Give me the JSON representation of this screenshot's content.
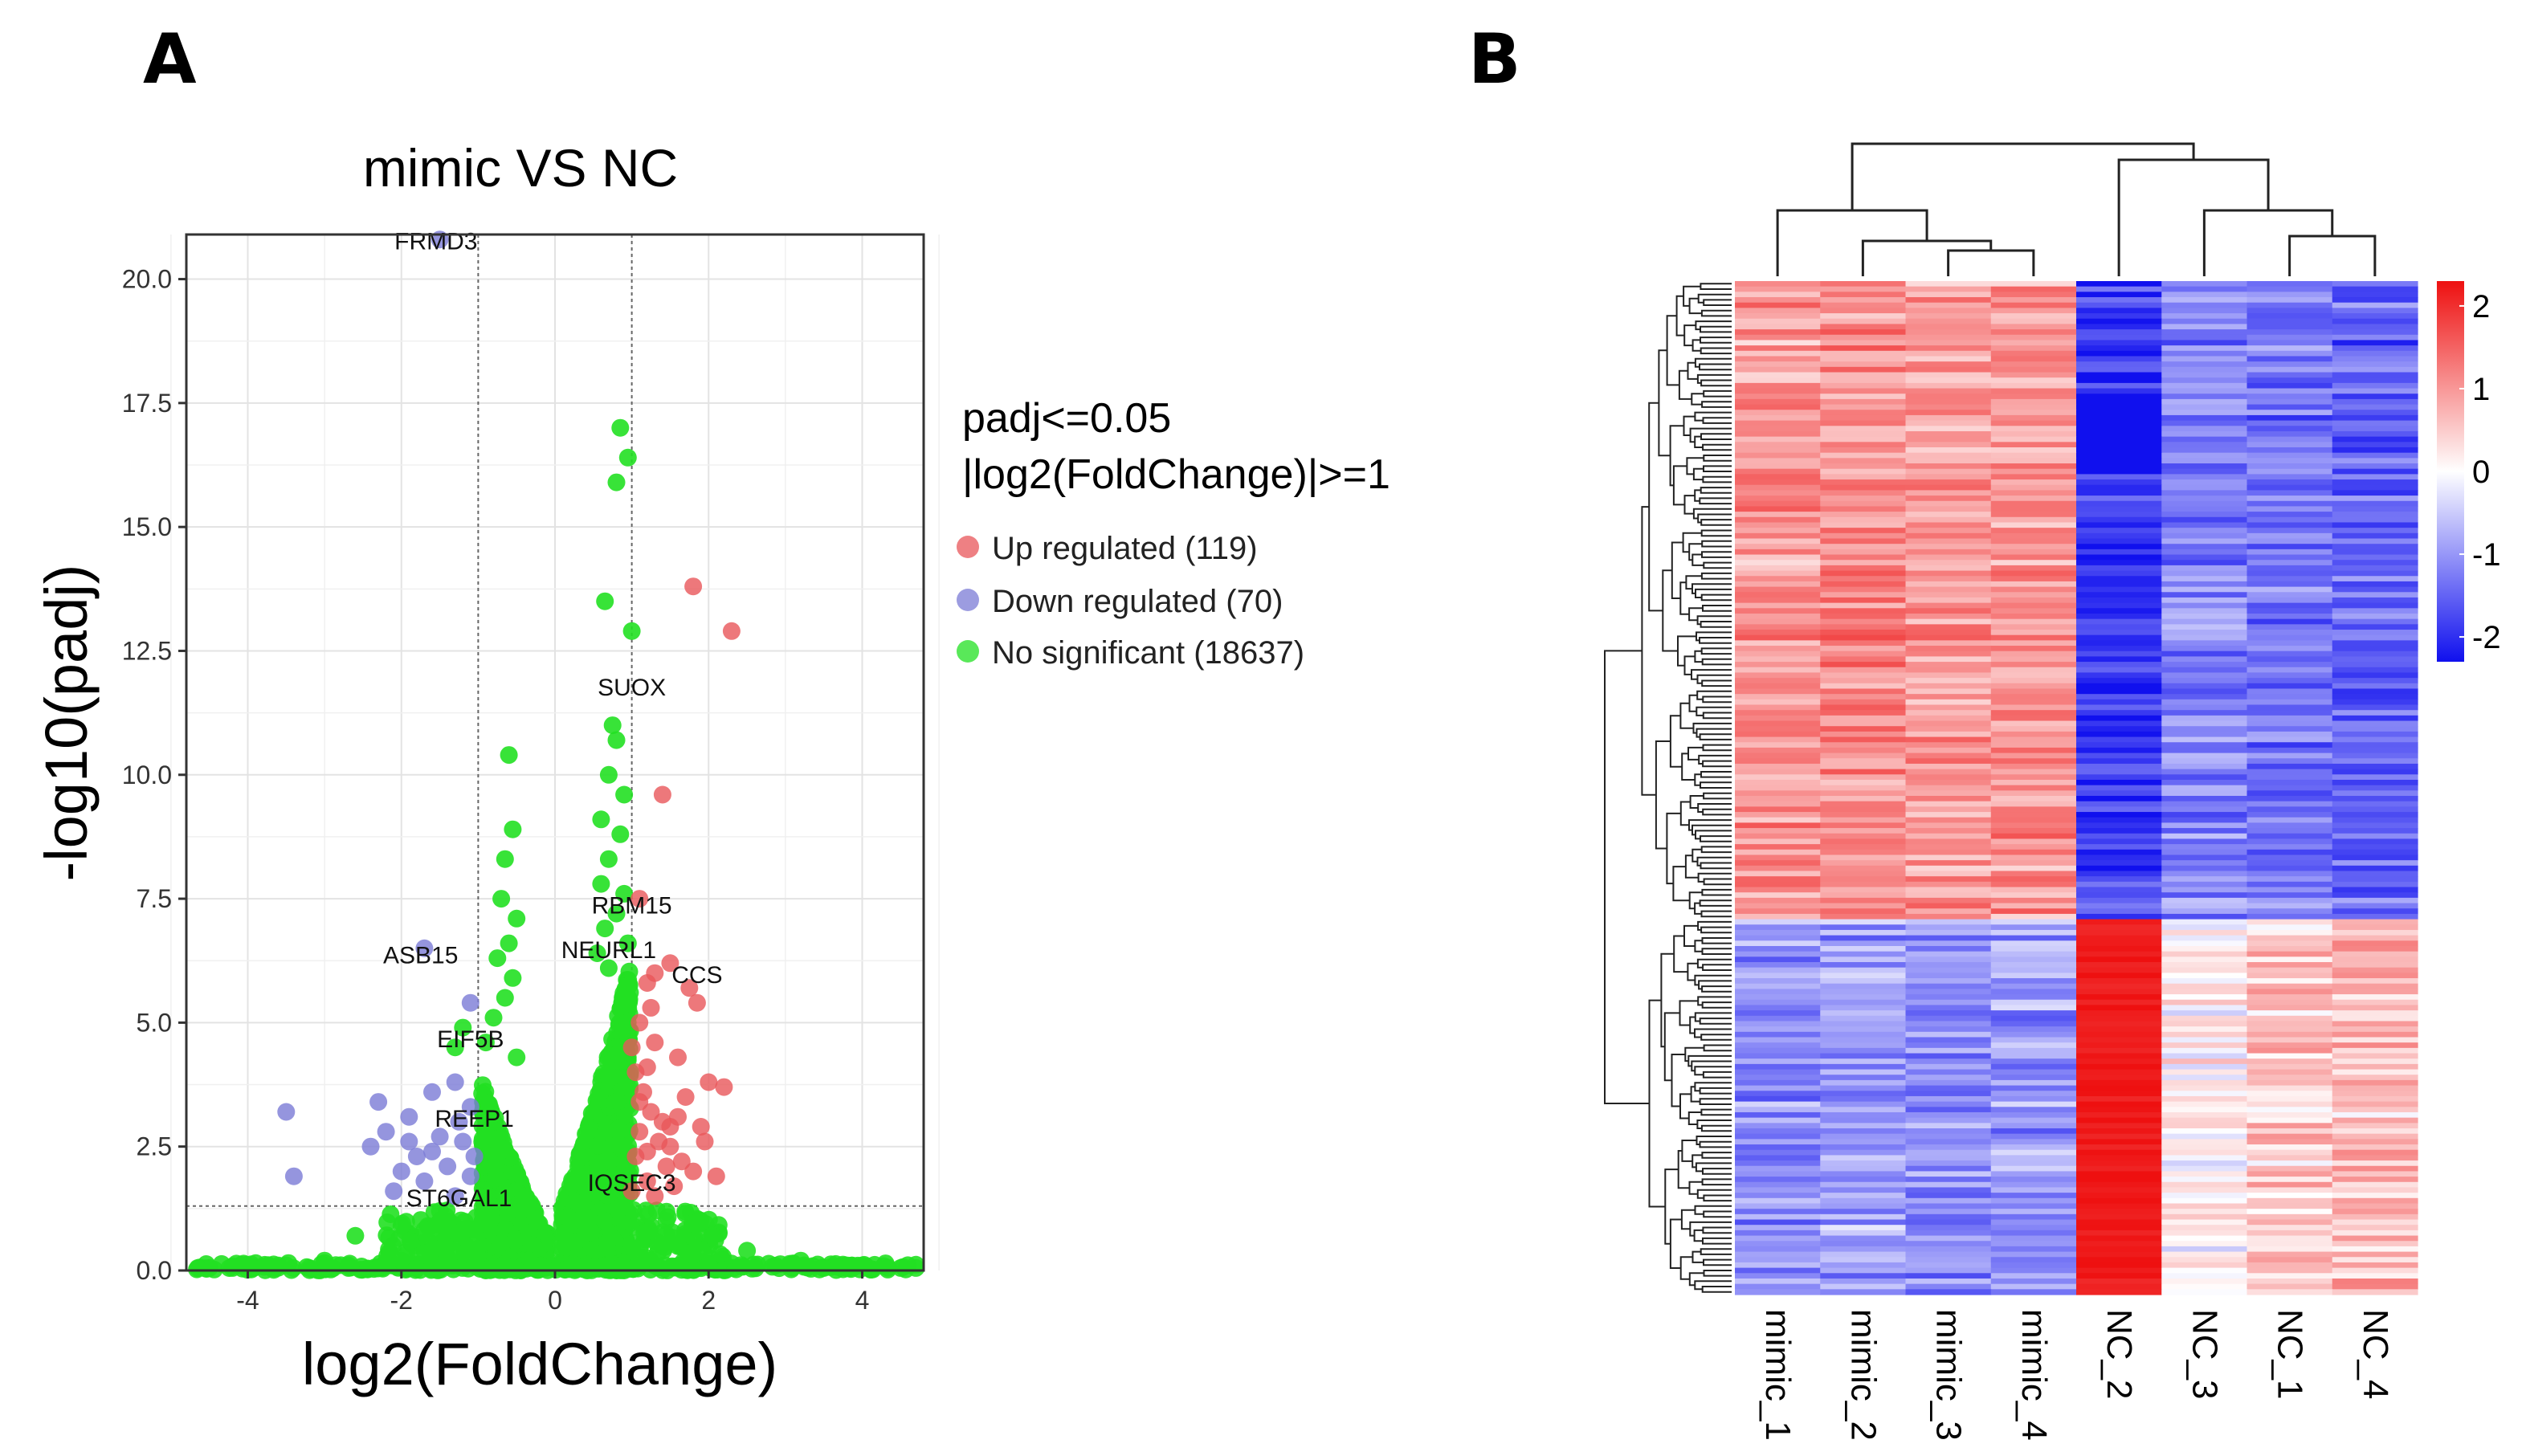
{
  "panel_labels": {
    "a": "A",
    "b": "B"
  },
  "chart_data": [
    {
      "type": "scatter",
      "subtype": "volcano",
      "title": "mimic VS NC",
      "xlabel": "log2(FoldChange)",
      "ylabel": "-log10(padj)",
      "xlim": [
        -4.8,
        4.8
      ],
      "ylim": [
        0,
        20.9
      ],
      "x_ticks": [
        -4,
        -2,
        0,
        2,
        4
      ],
      "x_tick_labels": [
        "-4",
        "-2",
        "0",
        "2",
        "4"
      ],
      "y_ticks": [
        0,
        2.5,
        5,
        7.5,
        10,
        12.5,
        15,
        17.5,
        20
      ],
      "y_tick_labels": [
        "0.0",
        "2.5",
        "5.0",
        "7.5",
        "10.0",
        "12.5",
        "15.0",
        "17.5",
        "20.0"
      ],
      "grid": true,
      "thresholds": {
        "log2fc": [
          -1,
          1
        ],
        "neg_log10_padj": 1.3
      },
      "legend": {
        "title_line1": "padj<=0.05",
        "title_line2": "|log2(FoldChange)|>=1",
        "position": "right",
        "entries": [
          {
            "label": "Up regulated (119)",
            "color": "#e8565a"
          },
          {
            "label": "Down regulated (70)",
            "color": "#7b7bd6"
          },
          {
            "label": "No significant (18637)",
            "color": "#22e022"
          }
        ]
      },
      "series": [
        {
          "name": "Up regulated",
          "color": "#e8565a",
          "points": [
            [
              1.8,
              13.8
            ],
            [
              2.3,
              12.9
            ],
            [
              1.4,
              9.6
            ],
            [
              1.1,
              7.5
            ],
            [
              1.5,
              6.2
            ],
            [
              1.3,
              6.0
            ],
            [
              1.75,
              5.7
            ],
            [
              1.85,
              5.4
            ],
            [
              1.2,
              5.8
            ],
            [
              1.1,
              5.0
            ],
            [
              1.3,
              4.6
            ],
            [
              1.6,
              4.3
            ],
            [
              1.2,
              4.1
            ],
            [
              2.0,
              3.8
            ],
            [
              1.05,
              4.0
            ],
            [
              1.1,
              3.4
            ],
            [
              1.25,
              3.2
            ],
            [
              1.4,
              3.0
            ],
            [
              2.2,
              3.7
            ],
            [
              1.7,
              3.5
            ],
            [
              1.5,
              2.9
            ],
            [
              1.1,
              2.8
            ],
            [
              1.35,
              2.6
            ],
            [
              1.9,
              2.9
            ],
            [
              1.2,
              2.4
            ],
            [
              1.65,
              2.2
            ],
            [
              1.05,
              2.3
            ],
            [
              1.45,
              2.1
            ],
            [
              1.8,
              2.0
            ],
            [
              2.1,
              1.9
            ],
            [
              1.2,
              1.8
            ],
            [
              1.55,
              1.7
            ],
            [
              1.0,
              1.6
            ],
            [
              1.3,
              1.5
            ],
            [
              1.15,
              3.6
            ],
            [
              1.6,
              3.1
            ],
            [
              1.0,
              4.5
            ],
            [
              1.25,
              5.3
            ],
            [
              1.5,
              2.5
            ],
            [
              1.95,
              2.6
            ]
          ]
        },
        {
          "name": "Down regulated",
          "color": "#7b7bd6",
          "points": [
            [
              -1.5,
              20.8
            ],
            [
              -1.7,
              6.5
            ],
            [
              -1.1,
              5.4
            ],
            [
              -3.5,
              3.2
            ],
            [
              -2.3,
              3.4
            ],
            [
              -1.9,
              3.1
            ],
            [
              -1.6,
              3.6
            ],
            [
              -1.3,
              3.8
            ],
            [
              -1.1,
              3.3
            ],
            [
              -2.4,
              2.5
            ],
            [
              -3.4,
              1.9
            ],
            [
              -1.8,
              2.3
            ],
            [
              -2.2,
              2.8
            ],
            [
              -1.5,
              2.7
            ],
            [
              -1.2,
              2.6
            ],
            [
              -2.0,
              2.0
            ],
            [
              -1.4,
              2.1
            ],
            [
              -1.7,
              1.8
            ],
            [
              -1.1,
              1.9
            ],
            [
              -1.3,
              1.5
            ],
            [
              -2.1,
              1.6
            ],
            [
              -1.05,
              2.3
            ],
            [
              -1.6,
              2.4
            ],
            [
              -1.25,
              3.0
            ],
            [
              -1.9,
              2.6
            ]
          ]
        },
        {
          "name": "No significant",
          "color": "#22e022",
          "points": [
            [
              0.85,
              17.0
            ],
            [
              0.95,
              16.4
            ],
            [
              0.8,
              15.9
            ],
            [
              0.65,
              13.5
            ],
            [
              1.0,
              12.9
            ],
            [
              0.75,
              11.0
            ],
            [
              0.8,
              10.7
            ],
            [
              0.7,
              10.0
            ],
            [
              0.9,
              9.6
            ],
            [
              0.6,
              9.1
            ],
            [
              0.85,
              8.8
            ],
            [
              0.7,
              8.3
            ],
            [
              0.6,
              7.8
            ],
            [
              0.9,
              7.6
            ],
            [
              0.8,
              7.2
            ],
            [
              0.65,
              6.9
            ],
            [
              0.95,
              6.6
            ],
            [
              0.55,
              6.4
            ],
            [
              0.7,
              6.1
            ],
            [
              -0.6,
              10.4
            ],
            [
              -0.55,
              8.9
            ],
            [
              -0.65,
              8.3
            ],
            [
              -0.7,
              7.5
            ],
            [
              -0.5,
              7.1
            ],
            [
              -0.6,
              6.6
            ],
            [
              -0.75,
              6.3
            ],
            [
              -0.55,
              5.9
            ],
            [
              -0.65,
              5.5
            ],
            [
              -0.8,
              5.1
            ],
            [
              -0.9,
              4.6
            ],
            [
              -0.5,
              4.3
            ],
            [
              -1.2,
              4.9
            ],
            [
              -1.3,
              4.5
            ],
            [
              -2.0,
              0.9
            ],
            [
              -2.6,
              0.7
            ],
            [
              -1.5,
              1.2
            ],
            [
              1.45,
              1.0
            ],
            [
              1.9,
              0.8
            ],
            [
              2.05,
              0.7
            ],
            [
              2.5,
              0.4
            ],
            [
              3.2,
              0.2
            ],
            [
              -3.0,
              0.2
            ],
            [
              3.8,
              0.05
            ],
            [
              4.5,
              0.05
            ],
            [
              -4.5,
              0.05
            ],
            [
              -4.2,
              0.05
            ],
            [
              4.0,
              0.1
            ],
            [
              -3.6,
              0.1
            ],
            [
              4.7,
              0.05
            ],
            [
              -4.65,
              0.05
            ],
            [
              3.5,
              0.05
            ],
            [
              -3.2,
              0.05
            ]
          ]
        }
      ],
      "gene_labels": [
        {
          "text": "FRMD3",
          "x": -1.55,
          "y": 20.6
        },
        {
          "text": "SUOX",
          "x": 1.0,
          "y": 11.6
        },
        {
          "text": "RBM15",
          "x": 1.0,
          "y": 7.2
        },
        {
          "text": "ASB15",
          "x": -1.75,
          "y": 6.2
        },
        {
          "text": "NEURL1",
          "x": 0.7,
          "y": 6.3
        },
        {
          "text": "CCS",
          "x": 1.85,
          "y": 5.8
        },
        {
          "text": "EIF5B",
          "x": -1.1,
          "y": 4.5
        },
        {
          "text": "REEP1",
          "x": -1.05,
          "y": 2.9
        },
        {
          "text": "ST6GAL1",
          "x": -1.25,
          "y": 1.3
        },
        {
          "text": "IQSEC3",
          "x": 1.0,
          "y": 1.6
        }
      ]
    },
    {
      "type": "heatmap",
      "columns": [
        "mimic_1",
        "mimic_2",
        "mimic_3",
        "mimic_4",
        "NC_2",
        "NC_3",
        "NC_1",
        "NC_4"
      ],
      "n_rows": 189,
      "clusters": [
        {
          "name": "up_cluster",
          "rows": 119,
          "mean_z": [
            1.0,
            1.1,
            1.0,
            1.05,
            -1.9,
            -1.2,
            -1.3,
            -1.5
          ]
        },
        {
          "name": "down_cluster",
          "rows": 70,
          "mean_z": [
            -1.1,
            -0.9,
            -1.1,
            -1.0,
            2.0,
            0.1,
            0.5,
            0.6
          ]
        }
      ],
      "color_scale": {
        "min": -2.3,
        "max": 2.3,
        "colors": [
          "#1010ee",
          "#ffffff",
          "#ee1010"
        ],
        "tick_values": [
          2,
          1,
          0,
          -1,
          -2
        ],
        "tick_labels": [
          "2",
          "1",
          "0",
          "-1",
          "-2"
        ]
      }
    }
  ]
}
